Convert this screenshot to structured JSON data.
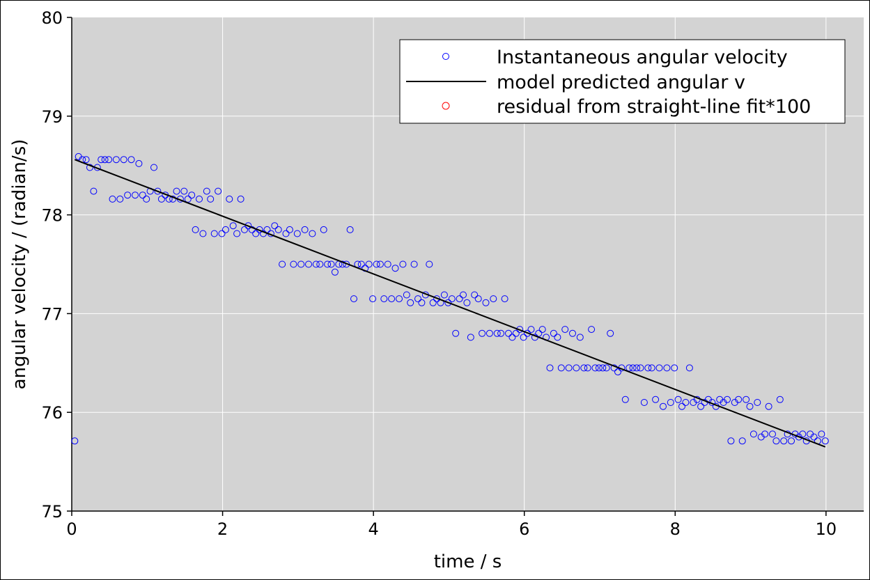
{
  "chart_data": {
    "type": "scatter",
    "xlabel": "time / s",
    "ylabel": "angular velocity / (radian/s)",
    "xlim": [
      0,
      10.5
    ],
    "ylim": [
      75,
      80
    ],
    "xticks": [
      "0",
      "2",
      "4",
      "6",
      "8",
      "10"
    ],
    "yticks": [
      "75",
      "76",
      "77",
      "78",
      "79",
      "80"
    ],
    "grid": true,
    "background": "#d3d3d3",
    "legend_position": "top-right",
    "series": [
      {
        "name": "Instantaneous angular velocity",
        "kind": "scatter",
        "marker": "open-circle",
        "color": "#0000ff",
        "points": [
          [
            0.04,
            75.71
          ],
          [
            0.09,
            78.59
          ],
          [
            0.14,
            78.56
          ],
          [
            0.19,
            78.56
          ],
          [
            0.24,
            78.48
          ],
          [
            0.29,
            78.24
          ],
          [
            0.34,
            78.48
          ],
          [
            0.39,
            78.56
          ],
          [
            0.44,
            78.56
          ],
          [
            0.49,
            78.56
          ],
          [
            0.54,
            78.16
          ],
          [
            0.59,
            78.56
          ],
          [
            0.64,
            78.16
          ],
          [
            0.69,
            78.56
          ],
          [
            0.74,
            78.2
          ],
          [
            0.79,
            78.56
          ],
          [
            0.84,
            78.2
          ],
          [
            0.89,
            78.52
          ],
          [
            0.94,
            78.2
          ],
          [
            0.99,
            78.16
          ],
          [
            1.04,
            78.24
          ],
          [
            1.09,
            78.48
          ],
          [
            1.14,
            78.24
          ],
          [
            1.19,
            78.16
          ],
          [
            1.24,
            78.2
          ],
          [
            1.29,
            78.16
          ],
          [
            1.34,
            78.16
          ],
          [
            1.39,
            78.24
          ],
          [
            1.44,
            78.16
          ],
          [
            1.49,
            78.24
          ],
          [
            1.54,
            78.16
          ],
          [
            1.59,
            78.2
          ],
          [
            1.64,
            77.85
          ],
          [
            1.69,
            78.16
          ],
          [
            1.74,
            77.81
          ],
          [
            1.79,
            78.24
          ],
          [
            1.84,
            78.16
          ],
          [
            1.89,
            77.81
          ],
          [
            1.94,
            78.24
          ],
          [
            1.99,
            77.81
          ],
          [
            2.04,
            77.85
          ],
          [
            2.09,
            78.16
          ],
          [
            2.14,
            77.89
          ],
          [
            2.19,
            77.81
          ],
          [
            2.24,
            78.16
          ],
          [
            2.29,
            77.85
          ],
          [
            2.34,
            77.89
          ],
          [
            2.39,
            77.85
          ],
          [
            2.44,
            77.81
          ],
          [
            2.49,
            77.85
          ],
          [
            2.54,
            77.81
          ],
          [
            2.59,
            77.85
          ],
          [
            2.64,
            77.81
          ],
          [
            2.69,
            77.89
          ],
          [
            2.74,
            77.85
          ],
          [
            2.79,
            77.5
          ],
          [
            2.84,
            77.81
          ],
          [
            2.89,
            77.85
          ],
          [
            2.94,
            77.5
          ],
          [
            2.99,
            77.81
          ],
          [
            3.04,
            77.5
          ],
          [
            3.09,
            77.85
          ],
          [
            3.14,
            77.5
          ],
          [
            3.19,
            77.81
          ],
          [
            3.24,
            77.5
          ],
          [
            3.29,
            77.5
          ],
          [
            3.34,
            77.85
          ],
          [
            3.39,
            77.5
          ],
          [
            3.44,
            77.5
          ],
          [
            3.49,
            77.42
          ],
          [
            3.54,
            77.5
          ],
          [
            3.59,
            77.5
          ],
          [
            3.64,
            77.5
          ],
          [
            3.69,
            77.85
          ],
          [
            3.74,
            77.15
          ],
          [
            3.79,
            77.5
          ],
          [
            3.84,
            77.5
          ],
          [
            3.89,
            77.46
          ],
          [
            3.94,
            77.5
          ],
          [
            3.99,
            77.15
          ],
          [
            4.04,
            77.5
          ],
          [
            4.09,
            77.5
          ],
          [
            4.14,
            77.15
          ],
          [
            4.19,
            77.5
          ],
          [
            4.24,
            77.15
          ],
          [
            4.29,
            77.46
          ],
          [
            4.34,
            77.15
          ],
          [
            4.39,
            77.5
          ],
          [
            4.44,
            77.19
          ],
          [
            4.49,
            77.11
          ],
          [
            4.54,
            77.5
          ],
          [
            4.59,
            77.15
          ],
          [
            4.64,
            77.11
          ],
          [
            4.69,
            77.19
          ],
          [
            4.74,
            77.5
          ],
          [
            4.79,
            77.11
          ],
          [
            4.84,
            77.15
          ],
          [
            4.89,
            77.11
          ],
          [
            4.94,
            77.19
          ],
          [
            4.99,
            77.11
          ],
          [
            5.04,
            77.15
          ],
          [
            5.09,
            76.8
          ],
          [
            5.14,
            77.15
          ],
          [
            5.19,
            77.19
          ],
          [
            5.24,
            77.11
          ],
          [
            5.29,
            76.76
          ],
          [
            5.34,
            77.19
          ],
          [
            5.39,
            77.15
          ],
          [
            5.44,
            76.8
          ],
          [
            5.49,
            77.11
          ],
          [
            5.54,
            76.8
          ],
          [
            5.59,
            77.15
          ],
          [
            5.64,
            76.8
          ],
          [
            5.69,
            76.8
          ],
          [
            5.74,
            77.15
          ],
          [
            5.79,
            76.8
          ],
          [
            5.84,
            76.76
          ],
          [
            5.89,
            76.8
          ],
          [
            5.94,
            76.84
          ],
          [
            5.99,
            76.76
          ],
          [
            6.04,
            76.8
          ],
          [
            6.09,
            76.84
          ],
          [
            6.14,
            76.76
          ],
          [
            6.19,
            76.8
          ],
          [
            6.24,
            76.84
          ],
          [
            6.29,
            76.76
          ],
          [
            6.34,
            76.45
          ],
          [
            6.39,
            76.8
          ],
          [
            6.44,
            76.76
          ],
          [
            6.49,
            76.45
          ],
          [
            6.54,
            76.84
          ],
          [
            6.59,
            76.45
          ],
          [
            6.64,
            76.8
          ],
          [
            6.69,
            76.45
          ],
          [
            6.74,
            76.76
          ],
          [
            6.79,
            76.45
          ],
          [
            6.84,
            76.45
          ],
          [
            6.89,
            76.84
          ],
          [
            6.94,
            76.45
          ],
          [
            6.99,
            76.45
          ],
          [
            7.04,
            76.45
          ],
          [
            7.09,
            76.45
          ],
          [
            7.14,
            76.8
          ],
          [
            7.19,
            76.45
          ],
          [
            7.24,
            76.41
          ],
          [
            7.29,
            76.45
          ],
          [
            7.34,
            76.13
          ],
          [
            7.39,
            76.45
          ],
          [
            7.44,
            76.45
          ],
          [
            7.49,
            76.45
          ],
          [
            7.54,
            76.45
          ],
          [
            7.59,
            76.1
          ],
          [
            7.64,
            76.45
          ],
          [
            7.69,
            76.45
          ],
          [
            7.74,
            76.13
          ],
          [
            7.79,
            76.45
          ],
          [
            7.84,
            76.06
          ],
          [
            7.89,
            76.45
          ],
          [
            7.94,
            76.1
          ],
          [
            7.99,
            76.45
          ],
          [
            8.04,
            76.13
          ],
          [
            8.09,
            76.06
          ],
          [
            8.14,
            76.1
          ],
          [
            8.19,
            76.45
          ],
          [
            8.24,
            76.1
          ],
          [
            8.29,
            76.13
          ],
          [
            8.34,
            76.06
          ],
          [
            8.39,
            76.1
          ],
          [
            8.44,
            76.13
          ],
          [
            8.49,
            76.1
          ],
          [
            8.54,
            76.06
          ],
          [
            8.59,
            76.13
          ],
          [
            8.64,
            76.1
          ],
          [
            8.69,
            76.13
          ],
          [
            8.74,
            75.71
          ],
          [
            8.79,
            76.1
          ],
          [
            8.84,
            76.13
          ],
          [
            8.89,
            75.71
          ],
          [
            8.94,
            76.13
          ],
          [
            8.99,
            76.06
          ],
          [
            9.04,
            75.78
          ],
          [
            9.09,
            76.1
          ],
          [
            9.14,
            75.75
          ],
          [
            9.19,
            75.78
          ],
          [
            9.24,
            76.06
          ],
          [
            9.29,
            75.78
          ],
          [
            9.34,
            75.71
          ],
          [
            9.39,
            76.13
          ],
          [
            9.44,
            75.71
          ],
          [
            9.49,
            75.78
          ],
          [
            9.54,
            75.71
          ],
          [
            9.59,
            75.78
          ],
          [
            9.64,
            75.75
          ],
          [
            9.69,
            75.78
          ],
          [
            9.74,
            75.71
          ],
          [
            9.79,
            75.78
          ],
          [
            9.84,
            75.75
          ],
          [
            9.89,
            75.71
          ],
          [
            9.94,
            75.78
          ],
          [
            9.99,
            75.71
          ]
        ]
      },
      {
        "name": "model predicted angular v",
        "kind": "line",
        "color": "#000000",
        "points": [
          [
            0.04,
            78.56
          ],
          [
            9.99,
            75.65
          ]
        ]
      },
      {
        "name": "residual from straight-line fit*100",
        "kind": "scatter",
        "marker": "open-circle",
        "color": "#ff0000",
        "points": []
      }
    ]
  }
}
